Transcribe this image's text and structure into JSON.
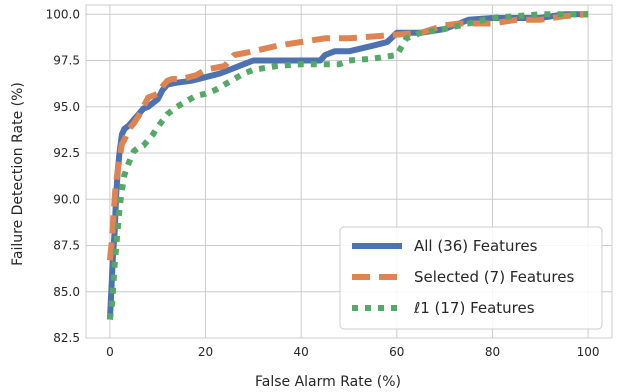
{
  "chart_data": {
    "type": "line",
    "xlabel": "False Alarm Rate (%)",
    "ylabel": "Failure Detection Rate (%)",
    "xlim": [
      -5,
      105
    ],
    "ylim": [
      82.5,
      100.5
    ],
    "xticks": [
      0,
      20,
      40,
      60,
      80,
      100
    ],
    "yticks": [
      82.5,
      85.0,
      87.5,
      90.0,
      92.5,
      95.0,
      97.5,
      100.0
    ],
    "xtick_labels": [
      "0",
      "20",
      "40",
      "60",
      "80",
      "100"
    ],
    "ytick_labels": [
      "82.5",
      "85.0",
      "87.5",
      "90.0",
      "92.5",
      "95.0",
      "97.5",
      "100.0"
    ],
    "grid": true,
    "legend_position": "bottom-right",
    "series": [
      {
        "name": "All (36) Features",
        "style": "solid",
        "color": "#4c72b0",
        "x": [
          0,
          0.3,
          0.6,
          1.0,
          1.3,
          1.7,
          2.0,
          2.5,
          3.0,
          4.0,
          5.0,
          6.0,
          7.0,
          8.0,
          9.0,
          10.0,
          11.0,
          12.0,
          14.0,
          17.0,
          20.0,
          23.0,
          25.0,
          28.0,
          30.0,
          35.0,
          40.0,
          44.0,
          45.0,
          47.0,
          50.0,
          55.0,
          58.0,
          60.0,
          65.0,
          70.0,
          73.0,
          75.0,
          80.0,
          85.0,
          90.0,
          95.0,
          100.0
        ],
        "y": [
          83.5,
          85.0,
          86.8,
          88.3,
          90.2,
          91.7,
          92.5,
          93.5,
          93.8,
          94.0,
          94.3,
          94.6,
          94.9,
          95.0,
          95.2,
          95.4,
          95.9,
          96.2,
          96.3,
          96.4,
          96.6,
          96.8,
          97.0,
          97.3,
          97.5,
          97.5,
          97.5,
          97.5,
          97.8,
          98.0,
          98.0,
          98.3,
          98.5,
          99.0,
          99.0,
          99.2,
          99.5,
          99.7,
          99.8,
          99.8,
          99.8,
          100.0,
          100.0
        ]
      },
      {
        "name": "Selected (7) Features",
        "style": "dashed",
        "color": "#dd8452",
        "x": [
          0,
          0.4,
          0.8,
          1.2,
          1.6,
          2.0,
          2.5,
          3.0,
          3.5,
          4.0,
          5.0,
          6.0,
          7.0,
          8.0,
          9.0,
          10.0,
          11.0,
          12.0,
          13.0,
          15.0,
          18.0,
          20.0,
          24.0,
          26.0,
          30.0,
          35.0,
          40.0,
          45.0,
          50.0,
          55.0,
          60.0,
          65.0,
          70.0,
          73.0,
          75.0,
          80.0,
          85.0,
          90.0,
          95.0,
          100.0
        ],
        "y": [
          86.7,
          87.7,
          89.3,
          90.7,
          91.5,
          92.2,
          93.0,
          93.2,
          93.5,
          93.8,
          94.1,
          94.5,
          95.0,
          95.5,
          95.6,
          95.7,
          96.1,
          96.4,
          96.5,
          96.5,
          96.7,
          97.0,
          97.2,
          97.8,
          98.0,
          98.3,
          98.5,
          98.7,
          98.7,
          98.8,
          98.9,
          99.0,
          99.4,
          99.5,
          99.5,
          99.5,
          99.7,
          99.7,
          99.9,
          100.0
        ]
      },
      {
        "name": "ℓ1 (17) Features",
        "style": "dotted",
        "color": "#55a868",
        "x": [
          0,
          0.5,
          1.0,
          1.5,
          2.0,
          2.5,
          3.0,
          4.0,
          5.0,
          6.0,
          7.0,
          8.0,
          9.0,
          10.0,
          12.0,
          14.0,
          16.0,
          18.0,
          20.0,
          22.0,
          24.0,
          26.0,
          28.0,
          30.0,
          35.0,
          40.0,
          45.0,
          48.0,
          50.0,
          55.0,
          60.0,
          62.0,
          65.0,
          70.0,
          75.0,
          80.0,
          85.0,
          90.0,
          95.0,
          100.0
        ],
        "y": [
          83.5,
          84.5,
          86.5,
          88.0,
          89.5,
          90.5,
          91.3,
          92.0,
          92.6,
          92.8,
          92.9,
          93.2,
          93.5,
          93.9,
          94.6,
          95.0,
          95.3,
          95.6,
          95.7,
          95.9,
          96.2,
          96.5,
          96.8,
          97.0,
          97.2,
          97.3,
          97.3,
          97.3,
          97.5,
          97.6,
          97.8,
          98.7,
          99.0,
          99.2,
          99.5,
          99.8,
          99.9,
          100.0,
          100.0,
          100.0
        ]
      }
    ]
  }
}
